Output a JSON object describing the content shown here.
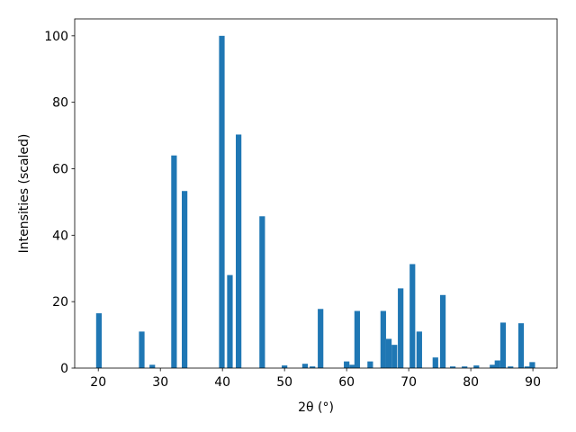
{
  "chart_data": {
    "type": "bar",
    "xlabel": "2θ (°)",
    "ylabel": "Intensities (scaled)",
    "x": [
      20.1,
      27.0,
      28.7,
      32.2,
      33.9,
      39.9,
      41.2,
      42.6,
      46.4,
      50.0,
      53.3,
      54.5,
      55.8,
      60.0,
      60.9,
      61.7,
      63.8,
      65.9,
      66.8,
      67.7,
      68.7,
      70.6,
      71.7,
      74.3,
      75.5,
      77.1,
      79.0,
      80.9,
      83.5,
      84.3,
      85.2,
      86.4,
      88.1,
      89.1,
      89.9
    ],
    "values": [
      16.5,
      11,
      1,
      64,
      53.3,
      100,
      28,
      70.3,
      45.7,
      0.8,
      1.3,
      0.5,
      17.8,
      2,
      1,
      17.2,
      2,
      17.2,
      8.8,
      7,
      24,
      31.3,
      11,
      3.2,
      22,
      0.5,
      0.5,
      0.8,
      1,
      2.3,
      13.7,
      0.5,
      13.5,
      0.5,
      1.8
    ],
    "color": "#1f77b4",
    "xlim": [
      16.2,
      93.9
    ],
    "xticks": [
      20,
      30,
      40,
      50,
      60,
      70,
      80,
      90
    ],
    "ylim": [
      0,
      105.1
    ],
    "yticks": [
      0,
      20,
      40,
      60,
      80,
      100
    ],
    "grid": false
  }
}
